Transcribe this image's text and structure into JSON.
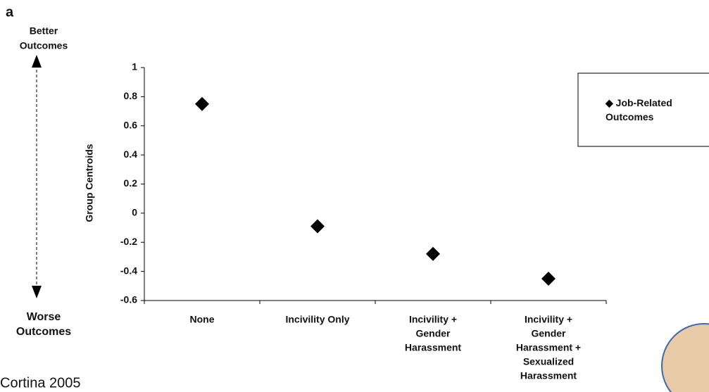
{
  "panel_label": "a",
  "better_label": [
    "Better",
    "Outcomes"
  ],
  "worse_label": [
    "Worse",
    "Outcomes"
  ],
  "source": "Cortina 2005",
  "chart_data": {
    "type": "scatter",
    "y_label": "Group Centroids",
    "categories": [
      [
        "None"
      ],
      [
        "Incivility Only"
      ],
      [
        "Incivility +",
        "Gender",
        "Harassment"
      ],
      [
        "Incivility +",
        "Gender",
        "Harassment +",
        "Sexualized",
        "Harassment"
      ]
    ],
    "series": [
      {
        "name": "Job-Related Outcomes",
        "color": "#000000",
        "values": [
          0.75,
          -0.09,
          -0.28,
          -0.45
        ]
      }
    ],
    "ylim": [
      -0.6,
      1
    ],
    "yticks": [
      -0.6,
      -0.4,
      -0.2,
      0,
      0.2,
      0.4,
      0.6,
      0.8,
      1
    ],
    "legend": "upper right"
  }
}
